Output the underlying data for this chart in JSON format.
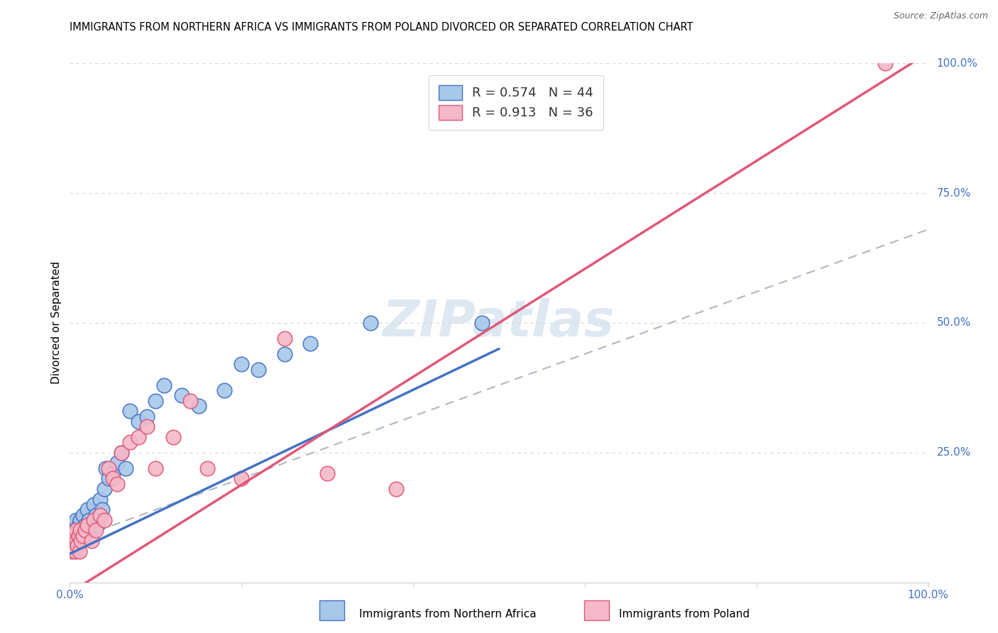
{
  "title": "IMMIGRANTS FROM NORTHERN AFRICA VS IMMIGRANTS FROM POLAND DIVORCED OR SEPARATED CORRELATION CHART",
  "source": "Source: ZipAtlas.com",
  "ylabel": "Divorced or Separated",
  "xlabel_blue": "Immigrants from Northern Africa",
  "xlabel_pink": "Immigrants from Poland",
  "R_blue": 0.574,
  "N_blue": 44,
  "R_pink": 0.913,
  "N_pink": 36,
  "color_blue": "#a8c8ea",
  "color_pink": "#f5b8c8",
  "line_blue": "#4472c4",
  "line_pink": "#e05878",
  "line_dashed_color": "#b0b8c0",
  "watermark_color": "#c8daea",
  "blue_line_x": [
    0.0,
    0.5
  ],
  "blue_line_y": [
    0.055,
    0.45
  ],
  "pink_line_x": [
    0.0,
    1.0
  ],
  "pink_line_y": [
    -0.02,
    1.02
  ],
  "dashed_line_x": [
    0.0,
    1.0
  ],
  "dashed_line_y": [
    0.08,
    0.68
  ],
  "blue_points_x": [
    0.002,
    0.003,
    0.004,
    0.005,
    0.006,
    0.007,
    0.008,
    0.009,
    0.01,
    0.011,
    0.012,
    0.013,
    0.015,
    0.016,
    0.018,
    0.02,
    0.022,
    0.025,
    0.028,
    0.03,
    0.032,
    0.035,
    0.038,
    0.04,
    0.042,
    0.045,
    0.05,
    0.055,
    0.06,
    0.065,
    0.07,
    0.08,
    0.09,
    0.1,
    0.11,
    0.13,
    0.15,
    0.18,
    0.2,
    0.22,
    0.25,
    0.28,
    0.35,
    0.48
  ],
  "blue_points_y": [
    0.08,
    0.1,
    0.09,
    0.11,
    0.1,
    0.12,
    0.09,
    0.1,
    0.11,
    0.08,
    0.12,
    0.1,
    0.13,
    0.09,
    0.11,
    0.14,
    0.12,
    0.1,
    0.15,
    0.13,
    0.11,
    0.16,
    0.14,
    0.18,
    0.22,
    0.2,
    0.21,
    0.23,
    0.25,
    0.22,
    0.33,
    0.31,
    0.32,
    0.35,
    0.38,
    0.36,
    0.34,
    0.37,
    0.42,
    0.41,
    0.44,
    0.46,
    0.5,
    0.5
  ],
  "pink_points_x": [
    0.002,
    0.003,
    0.004,
    0.005,
    0.006,
    0.007,
    0.008,
    0.009,
    0.01,
    0.011,
    0.012,
    0.013,
    0.015,
    0.018,
    0.02,
    0.025,
    0.028,
    0.03,
    0.035,
    0.04,
    0.045,
    0.05,
    0.055,
    0.06,
    0.07,
    0.08,
    0.09,
    0.1,
    0.12,
    0.14,
    0.16,
    0.2,
    0.25,
    0.3,
    0.38,
    0.95
  ],
  "pink_points_y": [
    0.06,
    0.08,
    0.07,
    0.09,
    0.06,
    0.1,
    0.08,
    0.07,
    0.09,
    0.06,
    0.1,
    0.08,
    0.09,
    0.1,
    0.11,
    0.08,
    0.12,
    0.1,
    0.13,
    0.12,
    0.22,
    0.2,
    0.19,
    0.25,
    0.27,
    0.28,
    0.3,
    0.22,
    0.28,
    0.35,
    0.22,
    0.2,
    0.47,
    0.21,
    0.18,
    1.0
  ],
  "background_color": "#ffffff",
  "grid_color": "#d8d8d8",
  "xlim": [
    0.0,
    1.0
  ],
  "ylim": [
    0.0,
    1.0
  ],
  "xtick_vals": [
    0.0,
    0.2,
    0.4,
    0.6,
    0.8,
    1.0
  ],
  "xtick_labels": [
    "0.0%",
    "",
    "",
    "",
    "",
    "100.0%"
  ],
  "ytick_vals": [
    0.0,
    0.25,
    0.5,
    0.75,
    1.0
  ],
  "ytick_labels_right": [
    "",
    "25.0%",
    "50.0%",
    "75.0%",
    "100.0%"
  ]
}
